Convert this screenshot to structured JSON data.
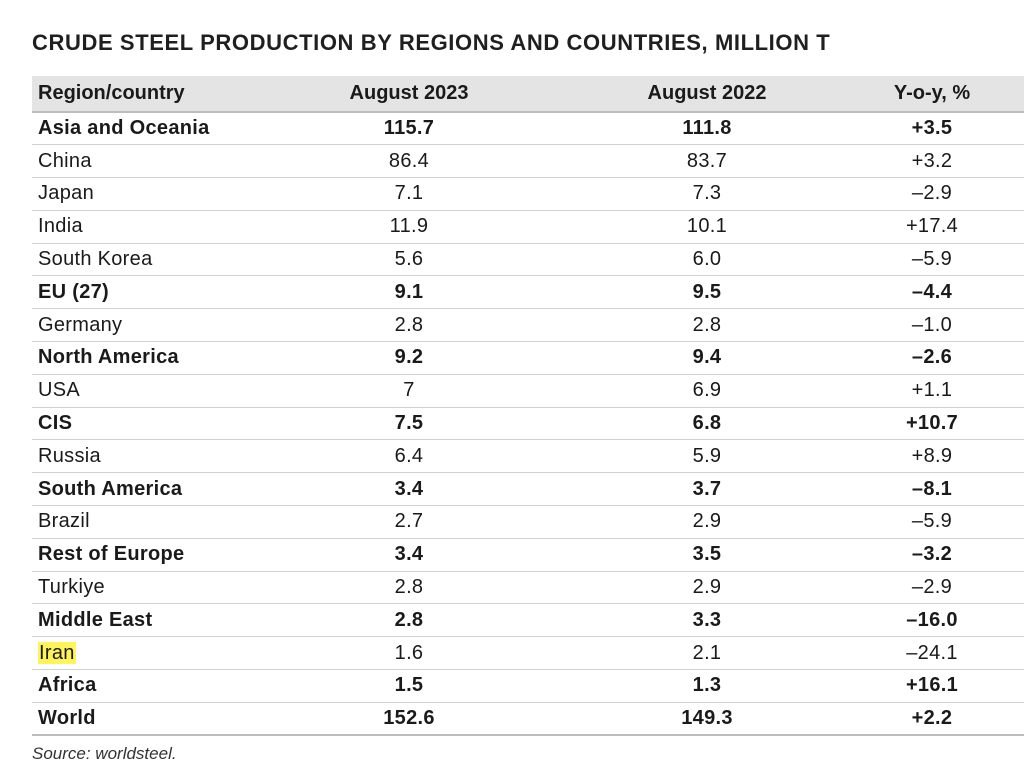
{
  "title": "CRUDE STEEL PRODUCTION BY REGIONS AND COUNTRIES, MILLION T",
  "table": {
    "headers": [
      "Region/country",
      "August 2023",
      "August 2022",
      "Y-o-y, %"
    ],
    "rows": [
      {
        "name": "Asia and Oceania",
        "aug2023": "115.7",
        "aug2022": "111.8",
        "yoy": "+3.5",
        "bold": true
      },
      {
        "name": "China",
        "aug2023": "86.4",
        "aug2022": "83.7",
        "yoy": "+3.2",
        "bold": false
      },
      {
        "name": "Japan",
        "aug2023": "7.1",
        "aug2022": "7.3",
        "yoy": "–2.9",
        "bold": false
      },
      {
        "name": "India",
        "aug2023": "11.9",
        "aug2022": "10.1",
        "yoy": "+17.4",
        "bold": false
      },
      {
        "name": "South Korea",
        "aug2023": "5.6",
        "aug2022": "6.0",
        "yoy": "–5.9",
        "bold": false
      },
      {
        "name": "EU (27)",
        "aug2023": "9.1",
        "aug2022": "9.5",
        "yoy": "–4.4",
        "bold": true
      },
      {
        "name": "Germany",
        "aug2023": "2.8",
        "aug2022": "2.8",
        "yoy": "–1.0",
        "bold": false
      },
      {
        "name": "North America",
        "aug2023": "9.2",
        "aug2022": "9.4",
        "yoy": "–2.6",
        "bold": true
      },
      {
        "name": "USA",
        "aug2023": "7",
        "aug2022": "6.9",
        "yoy": "+1.1",
        "bold": false
      },
      {
        "name": "CIS",
        "aug2023": "7.5",
        "aug2022": "6.8",
        "yoy": "+10.7",
        "bold": true
      },
      {
        "name": "Russia",
        "aug2023": "6.4",
        "aug2022": "5.9",
        "yoy": "+8.9",
        "bold": false
      },
      {
        "name": "South America",
        "aug2023": "3.4",
        "aug2022": "3.7",
        "yoy": "–8.1",
        "bold": true
      },
      {
        "name": "Brazil",
        "aug2023": "2.7",
        "aug2022": "2.9",
        "yoy": "–5.9",
        "bold": false
      },
      {
        "name": "Rest of Europe",
        "aug2023": "3.4",
        "aug2022": "3.5",
        "yoy": "–3.2",
        "bold": true
      },
      {
        "name": "Turkiye",
        "aug2023": "2.8",
        "aug2022": "2.9",
        "yoy": "–2.9",
        "bold": false
      },
      {
        "name": "Middle East",
        "aug2023": "2.8",
        "aug2022": "3.3",
        "yoy": "–16.0",
        "bold": true
      },
      {
        "name": "Iran",
        "aug2023": "1.6",
        "aug2022": "2.1",
        "yoy": "–24.1",
        "bold": false,
        "highlight": true,
        "highlight_color": "#fff55a"
      },
      {
        "name": "Africa",
        "aug2023": "1.5",
        "aug2022": "1.3",
        "yoy": "+16.1",
        "bold": true
      },
      {
        "name": "World",
        "aug2023": "152.6",
        "aug2022": "149.3",
        "yoy": "+2.2",
        "bold": true
      }
    ]
  },
  "source": "Source: worldsteel."
}
